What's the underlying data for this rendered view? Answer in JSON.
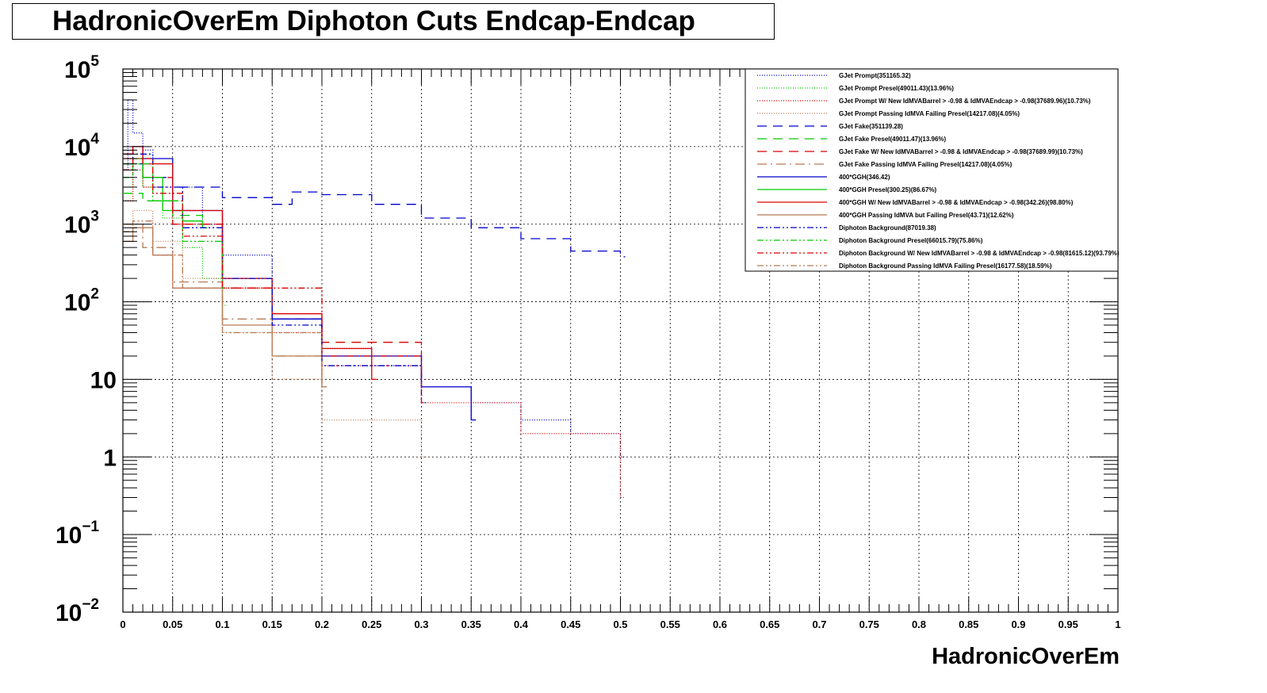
{
  "title": "HadronicOverEm Diphoton Cuts Endcap-Endcap",
  "colors": {
    "blue": "#0000cc",
    "green": "#00cc00",
    "red": "#dd0000",
    "brown": "#b87a55"
  },
  "chart_data": {
    "type": "line",
    "title": "HadronicOverEm Diphoton Cuts Endcap-Endcap",
    "xlabel": "HadronicOverEm",
    "ylabel": "",
    "xlim": [
      0,
      1
    ],
    "ylim": [
      0.01,
      100000
    ],
    "yscale": "log",
    "grid": true,
    "legend_position": "top-right",
    "x_ticks": [
      "0",
      "0.05",
      "0.1",
      "0.15",
      "0.2",
      "0.25",
      "0.3",
      "0.35",
      "0.4",
      "0.45",
      "0.5",
      "0.55",
      "0.6",
      "0.65",
      "0.7",
      "0.75",
      "0.8",
      "0.85",
      "0.9",
      "0.95",
      "1"
    ],
    "y_ticks": [
      {
        "base": "10",
        "exp": "5",
        "value": 100000
      },
      {
        "base": "10",
        "exp": "4",
        "value": 10000
      },
      {
        "base": "10",
        "exp": "3",
        "value": 1000
      },
      {
        "base": "10",
        "exp": "2",
        "value": 100
      },
      {
        "base": "10",
        "exp": "",
        "value": 10
      },
      {
        "base": "1",
        "exp": "",
        "value": 1
      },
      {
        "base": "10",
        "exp": "−1",
        "value": 0.1
      },
      {
        "base": "10",
        "exp": "−2",
        "value": 0.01
      }
    ],
    "series": [
      {
        "name": "GJet Prompt(351165.32)",
        "color": "#0000cc",
        "dash": "1,2",
        "x": [
          0,
          0.005,
          0.01,
          0.02,
          0.03,
          0.05,
          0.08,
          0.1,
          0.15,
          0.2,
          0.25,
          0.3,
          0.35,
          0.4,
          0.45,
          0.5
        ],
        "values": [
          5000,
          40000,
          15000,
          9000,
          6000,
          3000,
          1000,
          400,
          60,
          25,
          15,
          8,
          5,
          3,
          2,
          1
        ]
      },
      {
        "name": "GJet Prompt Presel(49011.43)(13.96%)",
        "color": "#00cc00",
        "dash": "1,2",
        "x": [
          0,
          0.01,
          0.02,
          0.04,
          0.06,
          0.08,
          0.1
        ],
        "values": [
          3000,
          6000,
          3000,
          1200,
          500,
          200,
          90
        ]
      },
      {
        "name": "GJet Prompt W/ New IdMVABarrel > -0.98 & IdMVAEndcap > -0.98(37689.96)(10.73%)",
        "color": "#dd0000",
        "dash": "1,2",
        "x": [
          0,
          0.01,
          0.02,
          0.05,
          0.1,
          0.15,
          0.2,
          0.3,
          0.4,
          0.5
        ],
        "values": [
          2000,
          5000,
          3000,
          1000,
          150,
          40,
          15,
          5,
          2,
          0.3
        ]
      },
      {
        "name": "GJet Prompt Passing IdMVA Failing Presel(14217.08)(4.05%)",
        "color": "#b87a55",
        "dash": "1,2",
        "x": [
          0,
          0.01,
          0.03,
          0.06,
          0.1,
          0.15,
          0.2,
          0.3
        ],
        "values": [
          900,
          1500,
          600,
          200,
          40,
          10,
          3,
          1
        ]
      },
      {
        "name": "GJet Fake(351139.28)",
        "color": "#0000cc",
        "dash": "12,8",
        "x": [
          0,
          0.02,
          0.05,
          0.1,
          0.15,
          0.17,
          0.2,
          0.25,
          0.3,
          0.35,
          0.4,
          0.45,
          0.5
        ],
        "values": [
          6000,
          4000,
          3000,
          2200,
          1800,
          2600,
          2400,
          1800,
          1200,
          900,
          650,
          450,
          380
        ]
      },
      {
        "name": "GJet Fake Presel(49011.47)(13.96%)",
        "color": "#00cc00",
        "dash": "12,8",
        "x": [
          0,
          0.02,
          0.05,
          0.08
        ],
        "values": [
          2500,
          2000,
          1300,
          900
        ]
      },
      {
        "name": "GJet Fake W/ New IdMVABarrel > -0.98 & IdMVAEndcap > -0.98(37689.99)(10.73%)",
        "color": "#dd0000",
        "dash": "12,8",
        "x": [
          0,
          0.02,
          0.05,
          0.1,
          0.15,
          0.2,
          0.3
        ],
        "values": [
          7000,
          4000,
          1000,
          150,
          60,
          30,
          10
        ]
      },
      {
        "name": "GJet Fake Passing IdMVA Failing Presel(14217.08)(4.05%)",
        "color": "#b87a55",
        "dash": "12,5,2,5",
        "x": [
          0,
          0.02,
          0.05,
          0.1,
          0.15,
          0.2
        ],
        "values": [
          1000,
          500,
          180,
          60,
          20,
          8
        ]
      },
      {
        "name": "400*GGH(346.42)",
        "color": "#0000cc",
        "dash": "",
        "x": [
          0,
          0.01,
          0.02,
          0.05,
          0.1,
          0.15,
          0.2,
          0.3,
          0.35
        ],
        "values": [
          8000,
          10000,
          7000,
          1500,
          200,
          60,
          20,
          8,
          3
        ]
      },
      {
        "name": "400*GGH Presel(300.25)(86.67%)",
        "color": "#00cc00",
        "dash": "",
        "x": [
          0,
          0.01,
          0.02,
          0.04,
          0.06,
          0.08
        ],
        "values": [
          6000,
          7000,
          4000,
          1500,
          1100,
          900
        ]
      },
      {
        "name": "400*GGH W/ New IdMVABarrel > -0.98 & IdMVAEndcap > -0.98(342.26)(98.80%)",
        "color": "#dd0000",
        "dash": "",
        "x": [
          0,
          0.01,
          0.02,
          0.05,
          0.1,
          0.15,
          0.2,
          0.25
        ],
        "values": [
          8000,
          10000,
          6000,
          1500,
          200,
          70,
          25,
          10
        ]
      },
      {
        "name": "400*GGH Passing IdMVA but Failing Presel(43.71)(12.62%)",
        "color": "#b87a55",
        "dash": "",
        "x": [
          0,
          0.01,
          0.03,
          0.05,
          0.1,
          0.15,
          0.2
        ],
        "values": [
          600,
          900,
          400,
          150,
          50,
          20,
          8
        ]
      },
      {
        "name": "Diphoton Background(87019.38)",
        "color": "#0000cc",
        "dash": "8,3,2,3,2,3",
        "x": [
          0,
          0.01,
          0.03,
          0.06,
          0.1,
          0.15,
          0.2,
          0.3
        ],
        "values": [
          5000,
          8000,
          3000,
          900,
          200,
          50,
          15,
          5
        ]
      },
      {
        "name": "Diphoton Background Presel(66015.79)(75.86%)",
        "color": "#00cc00",
        "dash": "8,3,2,3,2,3",
        "x": [
          0,
          0.01,
          0.03,
          0.06,
          0.1
        ],
        "values": [
          4000,
          6000,
          2000,
          600,
          150
        ]
      },
      {
        "name": "Diphoton Background W/ New IdMVABarrel > -0.98 & IdMVAEndcap > -0.98(81615.12)(93.79%)",
        "color": "#dd0000",
        "dash": "8,3,2,3,2,3",
        "x": [
          0,
          0.01,
          0.03,
          0.06,
          0.1,
          0.2,
          0.3
        ],
        "values": [
          5000,
          7000,
          2500,
          700,
          150,
          20,
          5
        ]
      },
      {
        "name": "Diphoton Background Passing IdMVA Failing Presel(16177.58)(18.59%)",
        "color": "#b87a55",
        "dash": "8,3,2,3,2,3",
        "x": [
          0,
          0.01,
          0.03,
          0.06,
          0.1,
          0.2
        ],
        "values": [
          800,
          1100,
          400,
          150,
          40,
          8
        ]
      }
    ]
  }
}
